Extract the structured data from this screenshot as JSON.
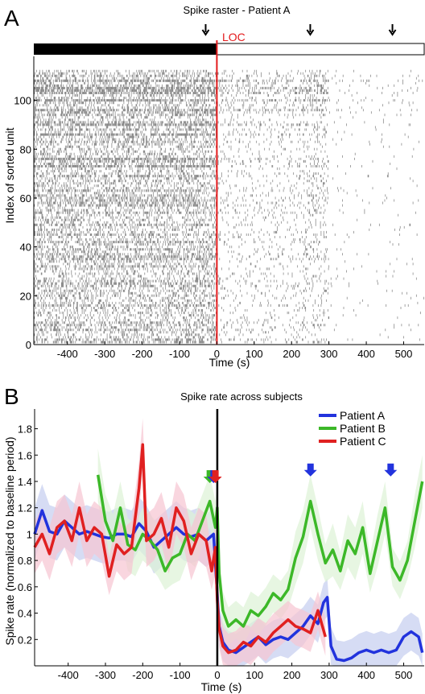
{
  "chart_data": [
    {
      "type": "heatmap",
      "panel_label": "A",
      "title": "Spike raster - Patient A",
      "xlabel": "Time (s)",
      "ylabel": "Index of sorted unit",
      "xlim": [
        -490,
        555
      ],
      "ylim": [
        0,
        118
      ],
      "xticks": [
        -400,
        -300,
        -200,
        -100,
        0,
        100,
        200,
        300,
        400,
        500
      ],
      "yticks": [
        0,
        20,
        40,
        60,
        80,
        100
      ],
      "event_line": {
        "x": 0,
        "label": "LOC",
        "color": "#e31a1c"
      },
      "arrow_times": [
        -30,
        250,
        470
      ],
      "state_bar": {
        "filled_until": 0
      },
      "dense_unit_rows": [
        73,
        76,
        86,
        90,
        96,
        100,
        103,
        104,
        105,
        108
      ],
      "density_by_period": [
        {
          "x_from": -490,
          "x_to": 0,
          "density": 0.3
        },
        {
          "x_from": 0,
          "x_to": 300,
          "density": 0.07
        },
        {
          "x_from": 300,
          "x_to": 555,
          "density": 0.012
        }
      ]
    },
    {
      "type": "line",
      "panel_label": "B",
      "title": "Spike rate across subjects",
      "xlabel": "Time (s)",
      "ylabel": "Spike rate (normalized to baseline period)",
      "xlim": [
        -490,
        555
      ],
      "ylim": [
        0,
        1.95
      ],
      "xticks": [
        -400,
        -300,
        -200,
        -100,
        0,
        100,
        200,
        300,
        400,
        500
      ],
      "yticks": [
        0.2,
        0.4,
        0.6,
        0.8,
        1,
        1.2,
        1.4,
        1.6,
        1.8
      ],
      "event_line": {
        "x": 0
      },
      "legend": "top-right",
      "series": [
        {
          "name": "Patient A",
          "color": "#2233dd",
          "x": [
            -490,
            -470,
            -450,
            -430,
            -410,
            -390,
            -370,
            -350,
            -330,
            -310,
            -290,
            -270,
            -250,
            -230,
            -210,
            -190,
            -170,
            -150,
            -130,
            -110,
            -90,
            -70,
            -50,
            -30,
            -10,
            0,
            5,
            15,
            30,
            50,
            70,
            90,
            110,
            130,
            150,
            170,
            190,
            210,
            230,
            250,
            270,
            285,
            295,
            305,
            320,
            340,
            360,
            380,
            400,
            420,
            440,
            460,
            480,
            500,
            520,
            540,
            550
          ],
          "y": [
            1.0,
            1.18,
            1.02,
            1.0,
            1.1,
            1.05,
            1.0,
            1.02,
            1.0,
            0.98,
            0.97,
            1.0,
            1.0,
            0.98,
            1.08,
            1.02,
            0.9,
            0.95,
            1.0,
            1.05,
            1.0,
            0.98,
            1.0,
            0.95,
            1.0,
            0.55,
            0.3,
            0.18,
            0.12,
            0.1,
            0.14,
            0.18,
            0.22,
            0.16,
            0.2,
            0.22,
            0.2,
            0.25,
            0.3,
            0.38,
            0.32,
            0.48,
            0.52,
            0.15,
            0.05,
            0.04,
            0.06,
            0.1,
            0.12,
            0.1,
            0.12,
            0.1,
            0.12,
            0.22,
            0.26,
            0.22,
            0.1
          ]
        },
        {
          "name": "Patient B",
          "color": "#3cb828",
          "x": [
            -320,
            -300,
            -280,
            -260,
            -240,
            -220,
            -200,
            -180,
            -160,
            -140,
            -120,
            -100,
            -80,
            -60,
            -40,
            -20,
            -5,
            0,
            5,
            15,
            30,
            50,
            70,
            90,
            110,
            130,
            150,
            170,
            190,
            210,
            230,
            250,
            270,
            290,
            310,
            330,
            350,
            370,
            390,
            410,
            430,
            450,
            470,
            490,
            510,
            530,
            550
          ],
          "y": [
            1.45,
            1.1,
            0.95,
            1.2,
            0.92,
            0.88,
            1.0,
            0.95,
            0.88,
            0.72,
            0.82,
            0.85,
            1.0,
            0.95,
            1.1,
            1.25,
            1.05,
            1.2,
            0.7,
            0.42,
            0.3,
            0.35,
            0.3,
            0.42,
            0.38,
            0.45,
            0.55,
            0.5,
            0.58,
            0.82,
            0.98,
            1.25,
            1.0,
            0.78,
            0.88,
            0.72,
            0.95,
            0.85,
            1.05,
            0.7,
            0.95,
            1.2,
            0.75,
            0.65,
            0.8,
            1.1,
            1.4
          ]
        },
        {
          "name": "Patient C",
          "color": "#e02020",
          "x": [
            -490,
            -470,
            -450,
            -430,
            -410,
            -390,
            -370,
            -350,
            -330,
            -310,
            -290,
            -270,
            -250,
            -230,
            -210,
            -200,
            -190,
            -170,
            -150,
            -130,
            -110,
            -90,
            -70,
            -50,
            -30,
            -15,
            -5,
            0,
            5,
            15,
            30,
            50,
            70,
            90,
            110,
            130,
            150,
            170,
            190,
            210,
            230,
            250,
            270,
            290
          ],
          "y": [
            0.9,
            1.0,
            0.85,
            1.05,
            1.1,
            0.95,
            1.2,
            0.95,
            1.05,
            1.0,
            0.68,
            0.92,
            0.85,
            0.9,
            1.35,
            1.68,
            0.95,
            1.0,
            1.12,
            0.9,
            1.2,
            1.1,
            0.85,
            1.0,
            0.95,
            0.72,
            0.9,
            0.5,
            0.28,
            0.15,
            0.1,
            0.12,
            0.18,
            0.15,
            0.22,
            0.18,
            0.25,
            0.3,
            0.35,
            0.3,
            0.28,
            0.25,
            0.42,
            0.22
          ]
        }
      ],
      "bands": [
        {
          "series": "Patient A",
          "color": "#c5cdf0"
        },
        {
          "series": "Patient B",
          "color": "#ddf2d6"
        },
        {
          "series": "Patient C",
          "color": "#f6c4d2"
        }
      ],
      "arrows": [
        {
          "x": 250,
          "y": 1.45,
          "color": "#2233dd"
        },
        {
          "x": 465,
          "y": 1.45,
          "color": "#2233dd"
        },
        {
          "x": -20,
          "y": 1.4,
          "color": "#3cb828"
        },
        {
          "x": -10,
          "y": 1.4,
          "color": "#2233dd"
        },
        {
          "x": -5,
          "y": 1.4,
          "color": "#e02020"
        }
      ]
    }
  ]
}
